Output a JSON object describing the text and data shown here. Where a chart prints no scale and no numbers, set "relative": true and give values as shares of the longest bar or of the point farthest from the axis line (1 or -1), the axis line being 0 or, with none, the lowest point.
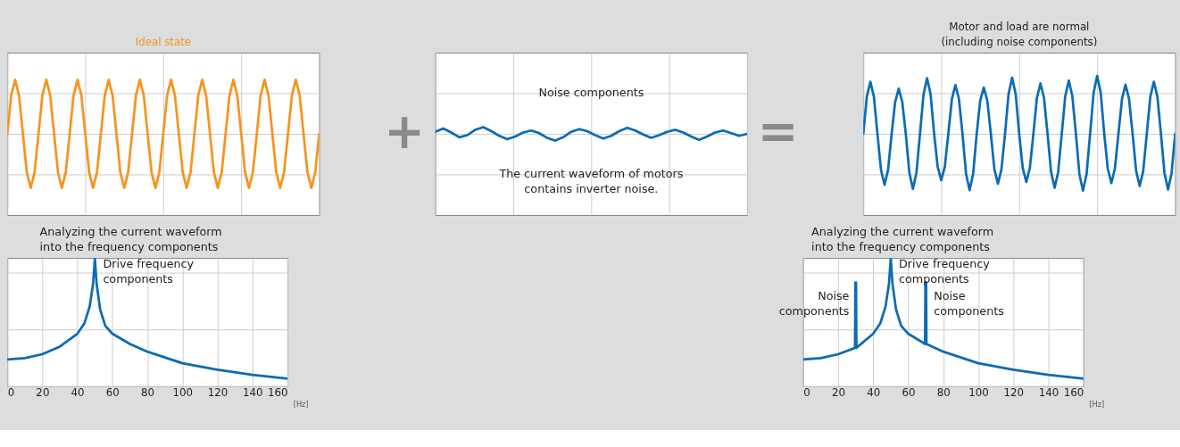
{
  "chart_data": [
    {
      "type": "line",
      "title": "Ideal state",
      "relative": true,
      "grid": true,
      "tick_labels": false,
      "categories": [
        null,
        null,
        null,
        null,
        null,
        null,
        null,
        null,
        null,
        null,
        null,
        null,
        null,
        null,
        null,
        null,
        null,
        null,
        null,
        null,
        null,
        null,
        null,
        null,
        null,
        null,
        null,
        null,
        null,
        null,
        null,
        null,
        null,
        null,
        null,
        null,
        null,
        null,
        null,
        null,
        null,
        null,
        null,
        null,
        null,
        null,
        null,
        null,
        null,
        null,
        null,
        null,
        null,
        null,
        null,
        null,
        null,
        null,
        null,
        null,
        null,
        null,
        null,
        null,
        null,
        null,
        null,
        null,
        null,
        null,
        null,
        null,
        null,
        null,
        null,
        null,
        null,
        null,
        null,
        null,
        null
      ],
      "series": [
        {
          "color": "#f7941d",
          "values": [
            0,
            0.71,
            1,
            0.71,
            0,
            -0.71,
            -1,
            -0.71,
            0,
            0.71,
            1,
            0.71,
            0,
            -0.71,
            -1,
            -0.71,
            0,
            0.71,
            1,
            0.71,
            0,
            -0.71,
            -1,
            -0.71,
            0,
            0.71,
            1,
            0.71,
            0,
            -0.71,
            -1,
            -0.71,
            0,
            0.71,
            1,
            0.71,
            0,
            -0.71,
            -1,
            -0.71,
            0,
            0.71,
            1,
            0.71,
            0,
            -0.71,
            -1,
            -0.71,
            0,
            0.71,
            1,
            0.71,
            0,
            -0.71,
            -1,
            -0.71,
            0,
            0.71,
            1,
            0.71,
            0,
            -0.71,
            -1,
            -0.71,
            0,
            0.71,
            1,
            0.71,
            0,
            -0.71,
            -1,
            -0.71,
            0,
            0.71,
            1,
            0.71,
            0,
            -0.71,
            -1,
            -0.71,
            0
          ]
        }
      ]
    },
    {
      "type": "line",
      "relative": true,
      "grid": true,
      "tick_labels": false,
      "annotations": [
        "+",
        "Noise components",
        "The current waveform of motors\ncontains inverter noise.",
        "="
      ],
      "categories": [
        null,
        null,
        null,
        null,
        null,
        null,
        null,
        null,
        null,
        null,
        null,
        null,
        null,
        null,
        null,
        null,
        null,
        null,
        null,
        null,
        null,
        null,
        null,
        null,
        null,
        null,
        null,
        null,
        null,
        null,
        null,
        null,
        null,
        null,
        null,
        null,
        null,
        null,
        null,
        null
      ],
      "series": [
        {
          "color": "#0a6cb5",
          "values": [
            0.3,
            0.8,
            0.2,
            -0.5,
            -0.2,
            0.6,
            1,
            0.4,
            -0.3,
            -0.8,
            -0.4,
            0.2,
            0.5,
            0.1,
            -0.6,
            -1,
            -0.5,
            0.3,
            0.7,
            0.4,
            -0.2,
            -0.7,
            -0.3,
            0.4,
            0.9,
            0.5,
            -0.1,
            -0.6,
            -0.2,
            0.3,
            0.6,
            0.2,
            -0.4,
            -0.9,
            -0.4,
            0.2,
            0.5,
            0.1,
            -0.3,
            0
          ]
        }
      ]
    },
    {
      "type": "line",
      "title": "Motor and load are normal\n(including noise components)",
      "relative": true,
      "grid": true,
      "tick_labels": false,
      "categories": [
        null,
        null,
        null,
        null,
        null,
        null,
        null,
        null,
        null,
        null,
        null,
        null,
        null,
        null,
        null,
        null,
        null,
        null,
        null,
        null,
        null,
        null,
        null,
        null,
        null,
        null,
        null,
        null,
        null,
        null,
        null,
        null,
        null,
        null,
        null,
        null,
        null,
        null,
        null,
        null,
        null,
        null,
        null,
        null,
        null,
        null,
        null,
        null,
        null,
        null,
        null,
        null,
        null,
        null,
        null,
        null,
        null,
        null,
        null,
        null,
        null,
        null,
        null,
        null,
        null,
        null,
        null,
        null,
        null,
        null,
        null,
        null,
        null,
        null,
        null,
        null,
        null,
        null,
        null,
        null,
        null,
        null,
        null,
        null,
        null,
        null,
        null,
        null,
        null
      ],
      "series": [
        {
          "color": "#0a6cb5",
          "values": [
            0,
            0.64,
            0.9,
            0.64,
            0,
            -0.62,
            -0.88,
            -0.62,
            0,
            0.55,
            0.78,
            0.55,
            0,
            -0.67,
            -0.95,
            -0.67,
            0,
            0.68,
            0.96,
            0.68,
            0,
            -0.57,
            -0.8,
            -0.57,
            0,
            0.6,
            0.84,
            0.6,
            0,
            -0.69,
            -0.97,
            -0.69,
            0,
            0.57,
            0.8,
            0.57,
            0,
            -0.61,
            -0.86,
            -0.61,
            0,
            0.69,
            0.97,
            0.69,
            0,
            -0.59,
            -0.83,
            -0.59,
            0,
            0.62,
            0.87,
            0.62,
            0,
            -0.66,
            -0.93,
            -0.66,
            0,
            0.65,
            0.92,
            0.65,
            0,
            -0.7,
            -0.98,
            -0.7,
            0,
            0.71,
            1,
            0.71,
            0,
            -0.6,
            -0.85,
            -0.6,
            0,
            0.6,
            0.85,
            0.6,
            0,
            -0.64,
            -0.9,
            -0.64,
            0,
            0.64,
            0.9,
            0.64,
            0,
            -0.68,
            -0.96,
            -0.68,
            0
          ]
        }
      ]
    },
    {
      "type": "line",
      "title": "Analyzing the current waveform\ninto the frequency components",
      "relative": true,
      "grid": true,
      "tick_labels": "x",
      "xlabel": "[Hz]",
      "xlim": [
        0,
        160
      ],
      "xticks": [
        0,
        20,
        40,
        60,
        80,
        100,
        120,
        140,
        160
      ],
      "annotations": [
        {
          "text": "Drive frequency\ncomponents",
          "x": 50,
          "y": 0.8
        }
      ],
      "x": [
        0,
        10,
        20,
        30,
        40,
        44,
        47,
        49,
        50,
        51,
        53,
        56,
        60,
        70,
        80,
        100,
        120,
        140,
        160
      ],
      "series": [
        {
          "color": "#0a6cb5",
          "values": [
            0.21,
            0.22,
            0.25,
            0.31,
            0.41,
            0.49,
            0.62,
            0.8,
            1,
            0.8,
            0.6,
            0.47,
            0.41,
            0.33,
            0.27,
            0.18,
            0.13,
            0.09,
            0.06
          ]
        }
      ]
    },
    {
      "type": "line",
      "title": "Analyzing the current waveform\ninto the frequency components",
      "relative": true,
      "grid": true,
      "tick_labels": "x",
      "xlabel": "[Hz]",
      "xlim": [
        0,
        160
      ],
      "xticks": [
        0,
        20,
        40,
        60,
        80,
        100,
        120,
        140,
        160
      ],
      "annotations": [
        {
          "text": "Drive frequency\ncomponents",
          "x": 50,
          "y": 0.8
        },
        {
          "text": "Noise\ncomponents",
          "x": 30,
          "y": 0.55
        },
        {
          "text": "Noise\ncomponents",
          "x": 70,
          "y": 0.55
        }
      ],
      "x": [
        0,
        10,
        20,
        29.6,
        29.8,
        30.2,
        30.4,
        40,
        44,
        47,
        49,
        50,
        51,
        53,
        56,
        60,
        69.6,
        69.8,
        70.2,
        70.4,
        80,
        100,
        120,
        140,
        160
      ],
      "series": [
        {
          "color": "#0a6cb5",
          "values": [
            0.21,
            0.22,
            0.25,
            0.3,
            0.81,
            0.81,
            0.3,
            0.41,
            0.49,
            0.62,
            0.8,
            1,
            0.8,
            0.6,
            0.47,
            0.41,
            0.33,
            0.81,
            0.81,
            0.33,
            0.27,
            0.18,
            0.13,
            0.09,
            0.06
          ]
        }
      ]
    }
  ]
}
